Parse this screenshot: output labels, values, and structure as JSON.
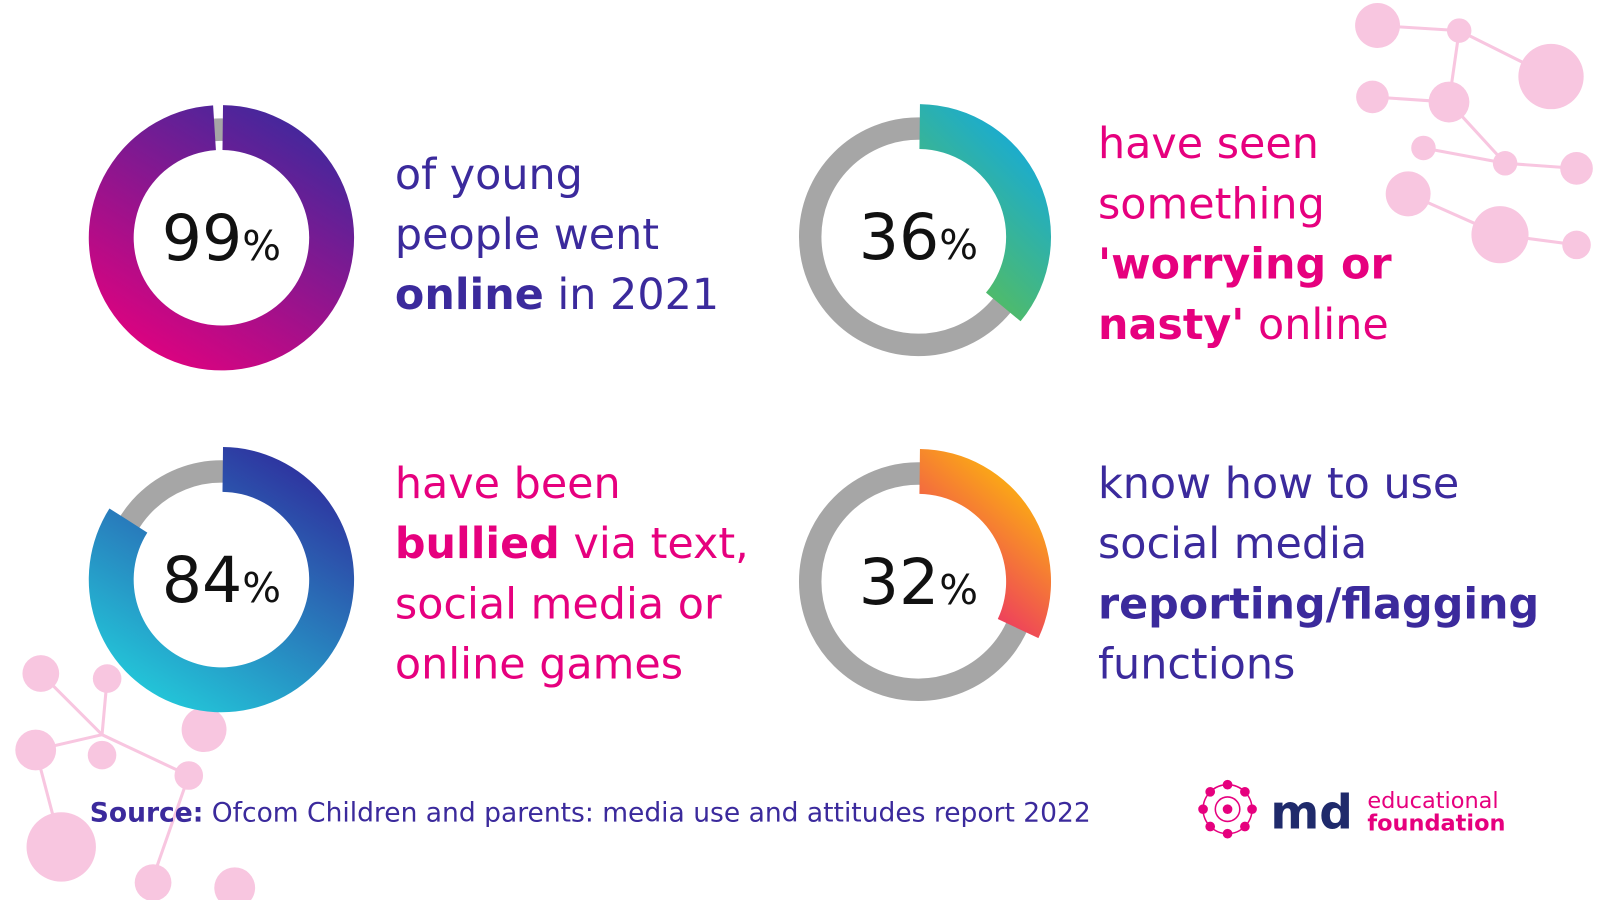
{
  "chart_data": [
    {
      "type": "donut",
      "value": 99,
      "unit": "%",
      "colors": [
        "#3a2a9e",
        "#e6007e"
      ],
      "track_color": "#a6a6a6",
      "text_color": "#3b2a9c",
      "description": [
        [
          {
            "text": "of young"
          }
        ],
        [
          {
            "text": "people went"
          }
        ],
        [
          {
            "text": "online",
            "bold": true
          },
          {
            "text": " in 2021"
          }
        ]
      ]
    },
    {
      "type": "donut",
      "value": 36,
      "unit": "%",
      "colors": [
        "#0ea8e8",
        "#62c046"
      ],
      "track_color": "#a6a6a6",
      "text_color": "#e6007e",
      "description": [
        [
          {
            "text": "have seen"
          }
        ],
        [
          {
            "text": "something"
          }
        ],
        [
          {
            "text": "'worrying or",
            "bold": true
          }
        ],
        [
          {
            "text": "nasty'",
            "bold": true
          },
          {
            "text": " online"
          }
        ]
      ]
    },
    {
      "type": "donut",
      "value": 84,
      "unit": "%",
      "colors": [
        "#2f2a9c",
        "#22cfdc"
      ],
      "track_color": "#a6a6a6",
      "text_color": "#e6007e",
      "description": [
        [
          {
            "text": "have been"
          }
        ],
        [
          {
            "text": "bullied",
            "bold": true
          },
          {
            "text": " via text,"
          }
        ],
        [
          {
            "text": "social media or"
          }
        ],
        [
          {
            "text": "online games"
          }
        ]
      ]
    },
    {
      "type": "donut",
      "value": 32,
      "unit": "%",
      "colors": [
        "#ffc800",
        "#e8157a"
      ],
      "track_color": "#a6a6a6",
      "text_color": "#3b2a9c",
      "description": [
        [
          {
            "text": "know how to use"
          }
        ],
        [
          {
            "text": "social media"
          }
        ],
        [
          {
            "text": "reporting/flagging",
            "bold": true
          }
        ],
        [
          {
            "text": "functions"
          }
        ]
      ]
    }
  ],
  "source": {
    "label": "Source:",
    "text": " Ofcom Children and parents: media use and attitudes report 2022"
  },
  "logo": {
    "mark": "md",
    "line1": "educational",
    "line2": "foundation"
  }
}
